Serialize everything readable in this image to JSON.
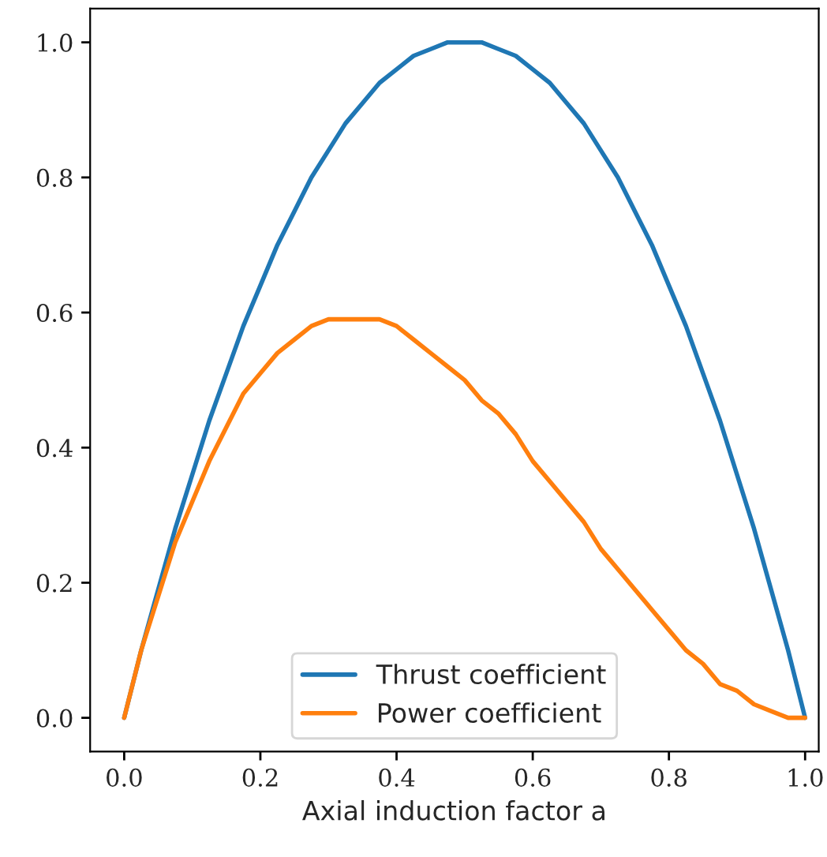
{
  "chart_data": {
    "type": "line",
    "xlabel": "Axial induction factor a",
    "x": [
      0,
      0.025,
      0.05,
      0.075,
      0.1,
      0.125,
      0.15,
      0.175,
      0.2,
      0.225,
      0.25,
      0.275,
      0.3,
      0.325,
      0.35,
      0.375,
      0.4,
      0.425,
      0.45,
      0.475,
      0.5,
      0.525,
      0.55,
      0.575,
      0.6,
      0.625,
      0.65,
      0.675,
      0.7,
      0.725,
      0.75,
      0.775,
      0.8,
      0.825,
      0.85,
      0.875,
      0.9,
      0.925,
      0.95,
      0.975,
      1.0
    ],
    "series": [
      {
        "name": "Thrust coefficient",
        "color": "#1f77b4",
        "values": [
          0,
          0.1,
          0.19,
          0.28,
          0.36,
          0.44,
          0.51,
          0.58,
          0.64,
          0.7,
          0.75,
          0.8,
          0.84,
          0.88,
          0.91,
          0.94,
          0.96,
          0.98,
          0.99,
          1.0,
          1.0,
          1.0,
          0.99,
          0.98,
          0.96,
          0.94,
          0.91,
          0.88,
          0.84,
          0.8,
          0.75,
          0.7,
          0.64,
          0.58,
          0.51,
          0.44,
          0.36,
          0.28,
          0.19,
          0.1,
          0
        ]
      },
      {
        "name": "Power coefficient",
        "color": "#ff7f0e",
        "values": [
          0,
          0.1,
          0.18,
          0.26,
          0.32,
          0.38,
          0.43,
          0.48,
          0.51,
          0.54,
          0.56,
          0.58,
          0.59,
          0.59,
          0.59,
          0.59,
          0.58,
          0.56,
          0.54,
          0.52,
          0.5,
          0.47,
          0.45,
          0.42,
          0.38,
          0.35,
          0.32,
          0.29,
          0.25,
          0.22,
          0.19,
          0.16,
          0.13,
          0.1,
          0.08,
          0.05,
          0.04,
          0.02,
          0.01,
          0.0,
          0
        ]
      }
    ],
    "xlim": [
      -0.05,
      1.02
    ],
    "ylim": [
      -0.05,
      1.05
    ],
    "xticks": [
      {
        "value": 0,
        "label": "0.0"
      },
      0.2,
      0.4,
      0.6,
      0.8,
      {
        "value": 1,
        "label": "1.0"
      }
    ],
    "yticks": [
      {
        "value": 0,
        "label": "0.0"
      },
      0.2,
      0.4,
      0.6,
      0.8,
      {
        "value": 1,
        "label": "1.0"
      }
    ],
    "legend": "bottom",
    "grid": false,
    "marker": "none",
    "line_style": "solid"
  }
}
